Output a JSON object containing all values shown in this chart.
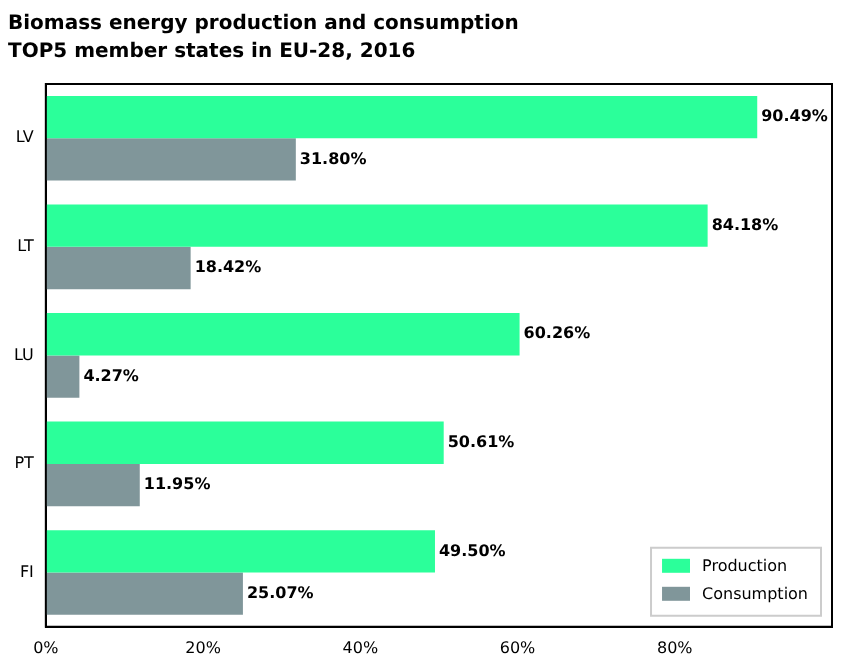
{
  "chart_data": {
    "type": "bar",
    "orientation": "horizontal",
    "title": "Biomass energy production and consumption",
    "subtitle": "TOP5 member states in EU-28, 2016",
    "categories": [
      "LV",
      "LT",
      "LU",
      "PT",
      "FI"
    ],
    "series": [
      {
        "name": "Production",
        "color": "#2bff9a",
        "values": [
          90.49,
          84.18,
          60.26,
          50.61,
          49.5
        ],
        "value_labels": [
          "90.49%",
          "84.18%",
          "60.26%",
          "50.61%",
          "49.50%"
        ]
      },
      {
        "name": "Consumption",
        "color": "#80969a",
        "values": [
          31.8,
          18.42,
          4.27,
          11.95,
          25.07
        ],
        "value_labels": [
          "31.80%",
          "18.42%",
          "4.27%",
          "11.95%",
          "25.07%"
        ]
      }
    ],
    "xlim": [
      0,
      100
    ],
    "xticks": [
      {
        "value": 0,
        "label": "0%"
      },
      {
        "value": 20,
        "label": "20%"
      },
      {
        "value": 40,
        "label": "40%"
      },
      {
        "value": 60,
        "label": "60%"
      },
      {
        "value": 80,
        "label": "80%"
      }
    ],
    "grid": false,
    "legend": "bottom right"
  }
}
